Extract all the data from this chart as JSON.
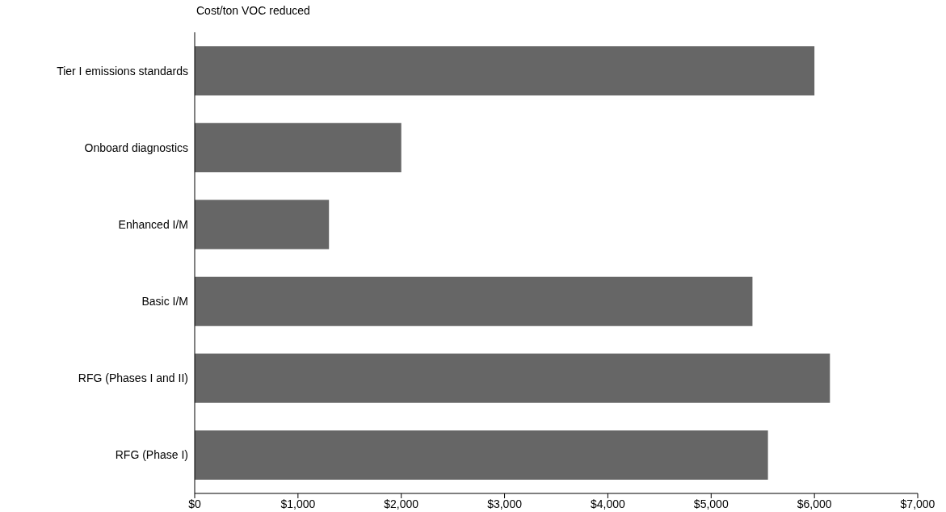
{
  "chart_data": {
    "type": "bar",
    "orientation": "horizontal",
    "title": "Cost/ton VOC reduced",
    "categories": [
      "Tier I emissions standards",
      "Onboard diagnostics",
      "Enhanced I/M",
      "Basic I/M",
      "RFG (Phases I and II)",
      "RFG (Phase I)"
    ],
    "values": [
      6000,
      2000,
      1300,
      5400,
      6150,
      5550
    ],
    "color": "#666666",
    "xlim": [
      0,
      7000
    ],
    "xticks": [
      {
        "value": 0,
        "label": "$0"
      },
      {
        "value": 1000,
        "label": "$1,000"
      },
      {
        "value": 2000,
        "label": "$2,000"
      },
      {
        "value": 3000,
        "label": "$3,000"
      },
      {
        "value": 4000,
        "label": "$4,000"
      },
      {
        "value": 5000,
        "label": "$5,000"
      },
      {
        "value": 6000,
        "label": "$6,000"
      },
      {
        "value": 7000,
        "label": "$7,000"
      }
    ],
    "grid": false,
    "legend": false
  }
}
